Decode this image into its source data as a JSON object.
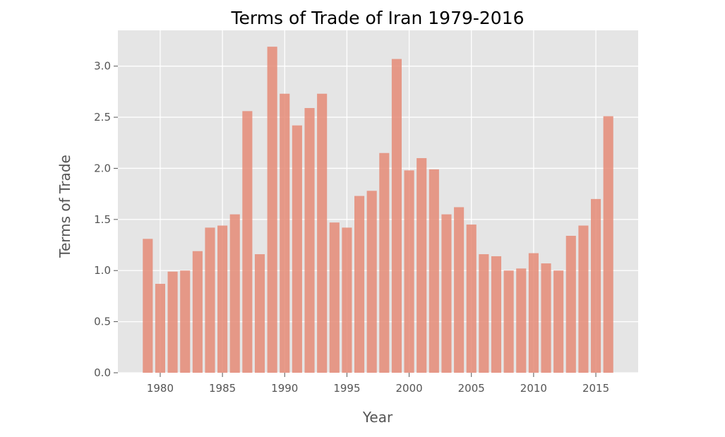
{
  "chart_data": {
    "type": "bar",
    "title": "Terms of Trade of Iran 1979-2016",
    "xlabel": "Year",
    "ylabel": "Terms of Trade",
    "x": [
      1979,
      1980,
      1981,
      1982,
      1983,
      1984,
      1985,
      1986,
      1987,
      1988,
      1989,
      1990,
      1991,
      1992,
      1993,
      1994,
      1995,
      1996,
      1997,
      1998,
      1999,
      2000,
      2001,
      2002,
      2003,
      2004,
      2005,
      2006,
      2007,
      2008,
      2009,
      2010,
      2011,
      2012,
      2013,
      2014,
      2015,
      2016
    ],
    "values": [
      1.31,
      0.87,
      0.99,
      1.0,
      1.19,
      1.42,
      1.44,
      1.55,
      2.56,
      1.16,
      3.19,
      2.73,
      2.42,
      2.59,
      2.73,
      1.47,
      1.42,
      1.73,
      1.78,
      2.15,
      3.07,
      1.98,
      2.1,
      1.99,
      1.55,
      1.62,
      1.45,
      1.16,
      1.14,
      1.0,
      1.02,
      1.17,
      1.07,
      1.0,
      1.34,
      1.44,
      1.7,
      2.51
    ],
    "xlim": [
      1976.6,
      1918.4
    ],
    "ylim": [
      0,
      3.35
    ],
    "xticks": [
      "1980",
      "1985",
      "1990",
      "1995",
      "2000",
      "2005",
      "2010",
      "2015"
    ],
    "yticks": [
      "0.0",
      "0.5",
      "1.0",
      "1.5",
      "2.0",
      "2.5",
      "3.0"
    ],
    "grid": true,
    "colors": {
      "bar": "#E58B77",
      "plot_background": "#E5E5E5",
      "grid": "#FFFFFF"
    }
  }
}
